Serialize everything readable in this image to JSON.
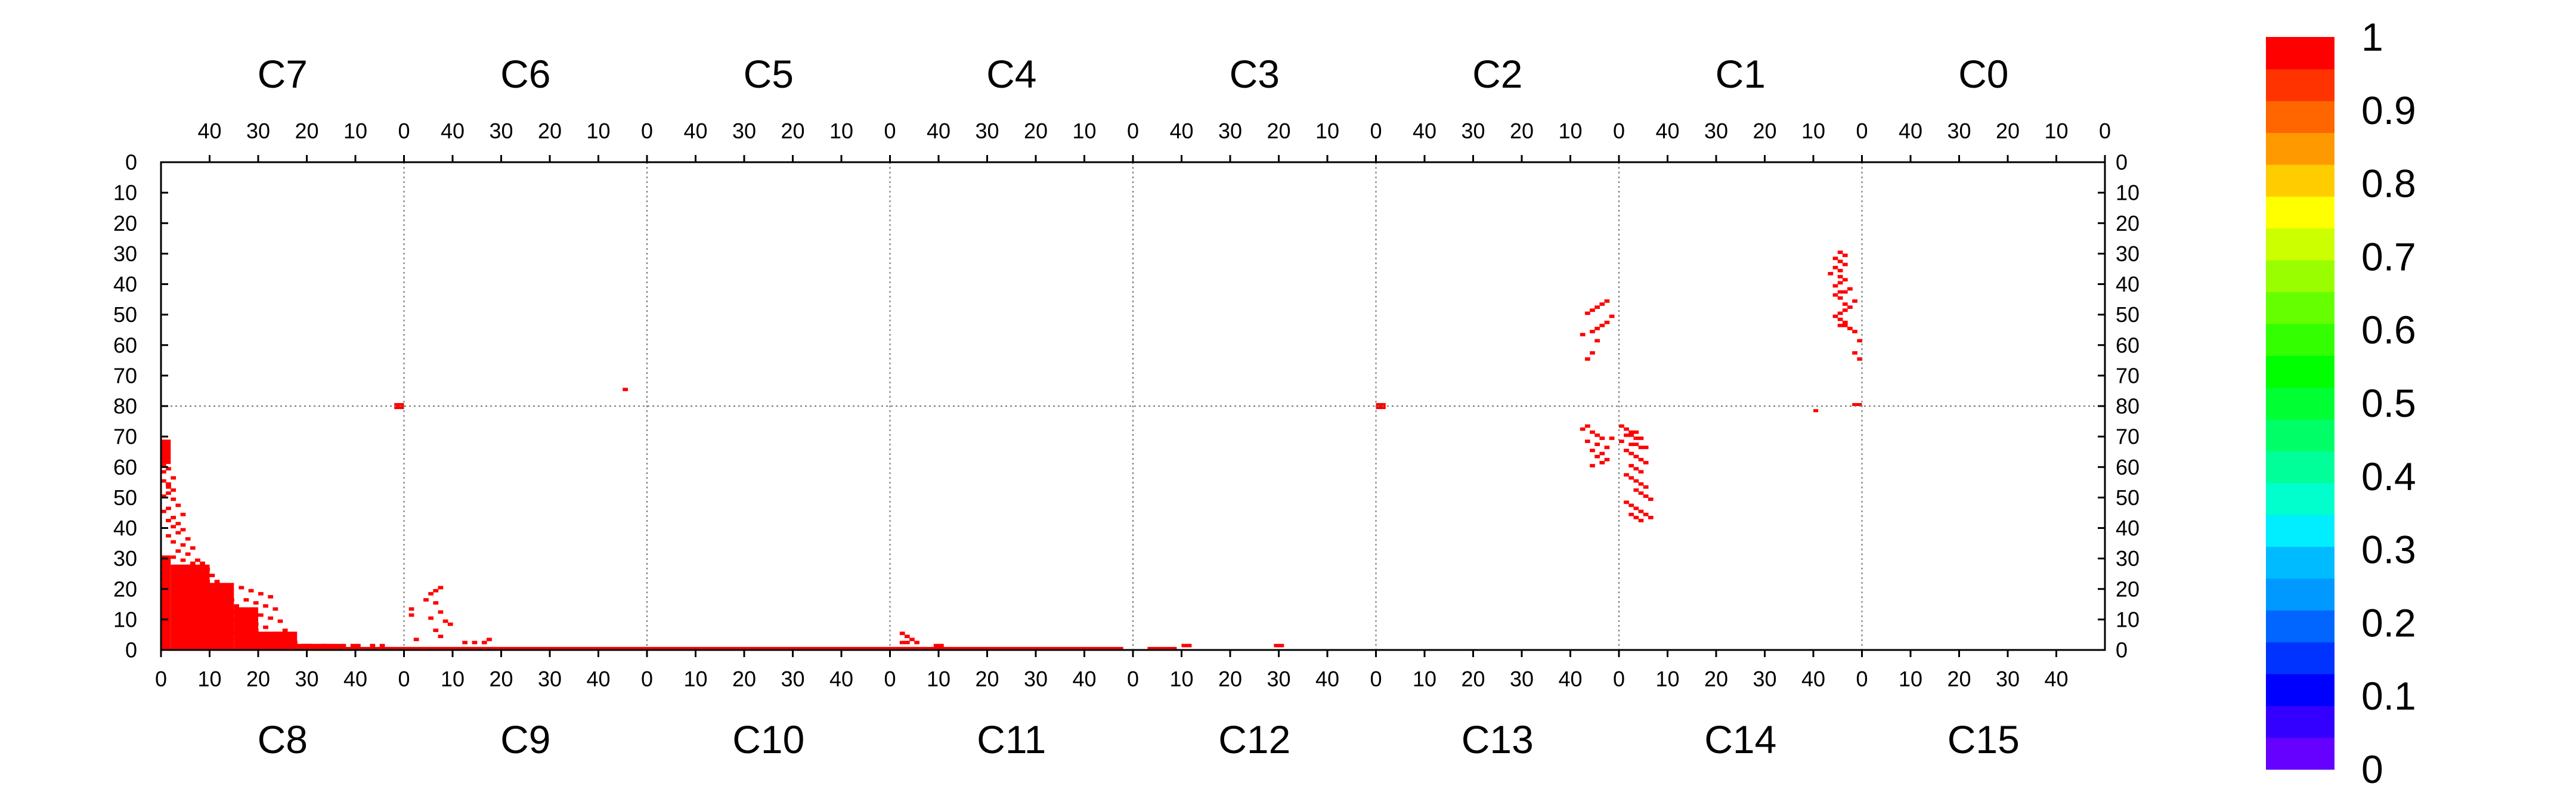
{
  "chart_data": {
    "type": "heatmap",
    "title": "",
    "top_row": [
      "C7",
      "C6",
      "C5",
      "C4",
      "C3",
      "C2",
      "C1",
      "C0"
    ],
    "bottom_row": [
      "C8",
      "C9",
      "C10",
      "C11",
      "C12",
      "C13",
      "C14",
      "C15"
    ],
    "bins_per_panel": 50,
    "top_tick_labels": [
      "40",
      "30",
      "20",
      "10",
      "0"
    ],
    "bottom_tick_labels": [
      "0",
      "10",
      "20",
      "30",
      "40"
    ],
    "y_top_labels": [
      "0",
      "10",
      "20",
      "30",
      "40",
      "50",
      "60",
      "70",
      "80"
    ],
    "y_bottom_labels": [
      "80",
      "70",
      "60",
      "50",
      "40",
      "30",
      "20",
      "10",
      "0"
    ],
    "mirrored_right_axis": true,
    "grid": "dotted separators between panels and halves",
    "colorbar": {
      "range": [
        0,
        1
      ],
      "tick_labels": [
        "1",
        "0.9",
        "0.8",
        "0.7",
        "0.6",
        "0.5",
        "0.4",
        "0.3",
        "0.2",
        "0.1",
        "0"
      ],
      "colors": [
        "#6600ff",
        "#3300ff",
        "#0000ff",
        "#0033ff",
        "#0066ff",
        "#0099ff",
        "#00bbff",
        "#00eeff",
        "#00ffcc",
        "#00ff99",
        "#00ff66",
        "#00ff33",
        "#00ff00",
        "#33ff00",
        "#66ff00",
        "#99ff00",
        "#ccff00",
        "#ffff00",
        "#ffcc00",
        "#ff9900",
        "#ff6600",
        "#ff3300",
        "#ff0000"
      ]
    },
    "cell_color": "#ff0000",
    "cell_value": 1,
    "rects": [
      {
        "panel": "C8",
        "x": [
          0,
          2
        ],
        "y": [
          0,
          31
        ]
      },
      {
        "panel": "C8",
        "x": [
          2,
          10
        ],
        "y": [
          0,
          28
        ]
      },
      {
        "panel": "C8",
        "x": [
          10,
          15
        ],
        "y": [
          0,
          22
        ]
      },
      {
        "panel": "C8",
        "x": [
          15,
          20
        ],
        "y": [
          0,
          14
        ]
      },
      {
        "panel": "C8",
        "x": [
          20,
          28
        ],
        "y": [
          0,
          6
        ]
      },
      {
        "panel": "C8",
        "x": [
          28,
          50
        ],
        "y": [
          0,
          1
        ]
      },
      {
        "panel": "C9",
        "x": [
          0,
          50
        ],
        "y": [
          0,
          1
        ]
      },
      {
        "panel": "C10",
        "x": [
          0,
          50
        ],
        "y": [
          0,
          1
        ]
      },
      {
        "panel": "C11",
        "x": [
          0,
          48
        ],
        "y": [
          0,
          1
        ]
      },
      {
        "panel": "C12",
        "x": [
          3,
          9
        ],
        "y": [
          0,
          1
        ]
      },
      {
        "panel": "C7",
        "x": [
          0,
          2
        ],
        "y": [
          79,
          81
        ]
      },
      {
        "panel": "C8",
        "x": [
          0,
          2
        ],
        "y": [
          61,
          69
        ]
      },
      {
        "panel": "C13",
        "x": [
          0,
          2
        ],
        "y": [
          79,
          81
        ]
      },
      {
        "panel": "C14",
        "x": [
          40,
          41
        ],
        "y": [
          78,
          79
        ]
      },
      {
        "panel": "C1",
        "x": [
          0,
          2
        ],
        "y": [
          79,
          80
        ]
      }
    ],
    "points": [
      {
        "panel": "C8",
        "x": [
          0,
          2,
          1,
          0,
          2,
          3,
          1,
          0,
          4,
          2,
          1,
          3,
          2,
          4,
          3,
          1,
          5,
          2,
          4,
          6,
          3,
          5,
          2,
          7,
          4,
          6,
          8,
          3,
          5,
          7,
          9,
          4,
          6,
          8,
          10,
          5,
          7,
          9,
          11,
          6,
          8,
          10,
          12,
          7,
          9,
          11,
          13,
          8,
          10,
          12,
          14,
          9,
          11,
          13,
          15,
          10,
          12,
          14,
          16,
          11,
          13,
          15,
          17,
          12,
          14,
          16,
          18,
          13,
          15,
          17,
          19,
          14,
          16,
          18,
          20,
          15,
          17,
          19,
          21,
          16,
          18,
          20,
          22,
          17,
          19,
          21,
          23,
          18,
          20,
          22,
          24,
          19,
          21,
          25,
          23,
          26,
          22,
          24,
          27,
          29,
          25,
          28,
          31,
          33,
          26,
          30,
          32,
          35,
          27,
          29,
          34,
          37,
          39,
          30,
          33,
          36,
          40,
          43,
          45,
          0,
          1,
          0,
          1,
          2,
          1,
          0
        ],
        "y": [
          58,
          56,
          53,
          50,
          49,
          47,
          46,
          45,
          44,
          43,
          42,
          41,
          40,
          39,
          38,
          37,
          36,
          35,
          34,
          33,
          32,
          31,
          30,
          29,
          29,
          28,
          28,
          27,
          27,
          26,
          26,
          25,
          25,
          24,
          24,
          23,
          23,
          22,
          22,
          21,
          21,
          20,
          20,
          19,
          19,
          18,
          18,
          17,
          17,
          16,
          16,
          15,
          15,
          14,
          14,
          13,
          13,
          12,
          12,
          11,
          11,
          10,
          10,
          9,
          9,
          8,
          8,
          7,
          7,
          6,
          6,
          5,
          5,
          4,
          4,
          3,
          3,
          2,
          2,
          20,
          19,
          18,
          17,
          16,
          15,
          14,
          13,
          12,
          11,
          10,
          9,
          8,
          7,
          6,
          5,
          4,
          3,
          2,
          2,
          1,
          1,
          1,
          1,
          1,
          1,
          1,
          1,
          1,
          1,
          1,
          1,
          1,
          1,
          1,
          1,
          1,
          1,
          1,
          1,
          60,
          59,
          55,
          54,
          52,
          51
        ]
      },
      {
        "panel": "C9",
        "x": [
          2,
          1,
          1,
          5,
          6,
          7,
          4,
          6,
          7,
          5,
          8,
          9,
          6,
          7,
          12,
          14,
          16,
          17
        ],
        "y": [
          3,
          13,
          11,
          18,
          19,
          20,
          16,
          15,
          12,
          10,
          9,
          8,
          6,
          4,
          2,
          2,
          2,
          3
        ]
      },
      {
        "panel": "C11",
        "x": [
          2,
          3,
          4,
          5,
          2,
          3,
          9,
          10
        ],
        "y": [
          5,
          4,
          3,
          2,
          2,
          2,
          1,
          1
        ]
      },
      {
        "panel": "C12",
        "x": [
          10,
          11,
          29,
          30
        ],
        "y": [
          1,
          1,
          1,
          1
        ]
      },
      {
        "panel": "C6",
        "x": [
          4
        ],
        "y": [
          74
        ]
      },
      {
        "panel": "C1",
        "x": [
          0,
          1,
          0,
          1,
          2,
          3,
          4,
          3,
          4,
          5,
          4,
          3,
          2,
          1,
          3,
          4,
          5,
          3,
          4,
          2,
          5,
          4,
          3,
          4,
          6,
          4,
          5,
          3,
          4,
          5,
          3,
          4
        ],
        "y": [
          64,
          62,
          58,
          55,
          54,
          53,
          53,
          52,
          51,
          50,
          49,
          48,
          47,
          45,
          46,
          44,
          43,
          42,
          42,
          41,
          40,
          39,
          38,
          37,
          36,
          35,
          34,
          33,
          32,
          31,
          30,
          29
        ]
      },
      {
        "panel": "C2",
        "x": [
          6,
          5,
          4,
          7,
          5,
          4,
          3,
          2,
          1,
          6,
          5,
          4,
          3,
          2
        ],
        "y": [
          64,
          62,
          58,
          56,
          55,
          54,
          53,
          52,
          50,
          49,
          48,
          47,
          46,
          45
        ]
      },
      {
        "panel": "C14",
        "x": [
          0,
          1,
          2,
          3,
          1,
          2,
          3,
          4,
          0,
          2,
          3,
          4,
          5,
          1,
          2,
          3,
          4,
          5,
          2,
          3,
          4,
          1,
          2,
          3,
          4,
          5,
          3,
          4,
          5,
          6,
          2,
          3,
          4,
          5,
          6,
          1,
          2,
          3,
          4
        ],
        "y": [
          73,
          72,
          71,
          71,
          70,
          70,
          69,
          69,
          68,
          67,
          67,
          66,
          66,
          65,
          64,
          63,
          62,
          61,
          60,
          59,
          58,
          57,
          56,
          55,
          54,
          53,
          52,
          51,
          50,
          49,
          47,
          46,
          45,
          44,
          43,
          48,
          44,
          43,
          42
        ]
      },
      {
        "panel": "C13",
        "x": [
          42,
          44,
          45,
          46,
          43,
          45,
          47,
          44,
          46,
          45,
          47,
          43,
          46,
          44,
          48
        ],
        "y": [
          72,
          71,
          70,
          69,
          68,
          67,
          66,
          65,
          64,
          63,
          62,
          73,
          61,
          60,
          69
        ]
      }
    ]
  }
}
